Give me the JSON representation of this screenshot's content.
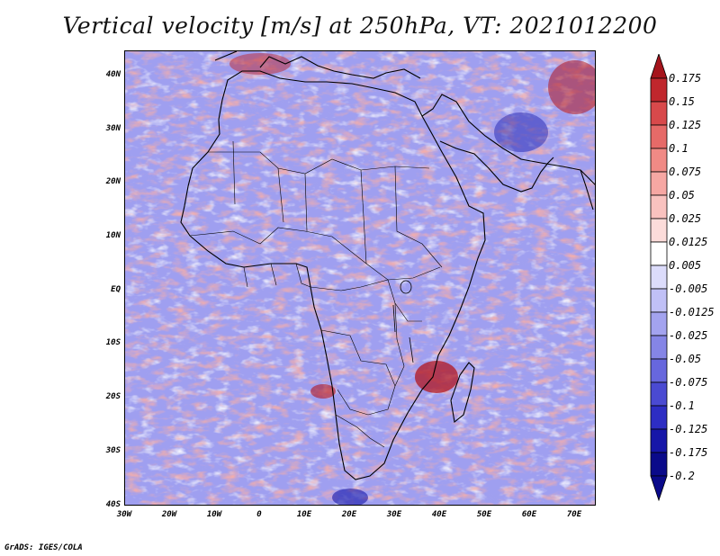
{
  "title": "Vertical velocity [m/s] at 250hPa, VT: 2021012200",
  "credit": "GrADS: IGES/COLA",
  "map": {
    "projection": "latlon",
    "lon_range": [
      -30,
      75
    ],
    "lat_range": [
      -40,
      45
    ],
    "lat_labels": [
      "40N",
      "30N",
      "20N",
      "10N",
      "EQ",
      "10S",
      "20S",
      "30S",
      "40S"
    ],
    "lat_values": [
      40,
      30,
      20,
      10,
      0,
      -10,
      -20,
      -30,
      -40
    ],
    "lon_labels": [
      "30W",
      "20W",
      "10W",
      "0",
      "10E",
      "20E",
      "30E",
      "40E",
      "50E",
      "60E",
      "70E"
    ],
    "lon_values": [
      -30,
      -20,
      -10,
      0,
      10,
      20,
      30,
      40,
      50,
      60,
      70
    ],
    "field_description": "w-field"
  },
  "colorbar": {
    "labels": [
      "0.175",
      "0.15",
      "0.125",
      "0.1",
      "0.075",
      "0.05",
      "0.025",
      "0.0125",
      "0.005",
      "-0.005",
      "-0.0125",
      "-0.025",
      "-0.05",
      "-0.075",
      "-0.1",
      "-0.125",
      "-0.175",
      "-0.2"
    ],
    "colors": [
      "#a5141c",
      "#c0272d",
      "#d8494b",
      "#e66a68",
      "#f08a85",
      "#f6a7a3",
      "#f9c2bf",
      "#fcdcda",
      "#ffffff",
      "#dcdcfb",
      "#c0c0f6",
      "#a3a3ef",
      "#8585e6",
      "#6767dd",
      "#4a4ad2",
      "#2d2dc3",
      "#1616a8",
      "#0a0a8a"
    ]
  }
}
